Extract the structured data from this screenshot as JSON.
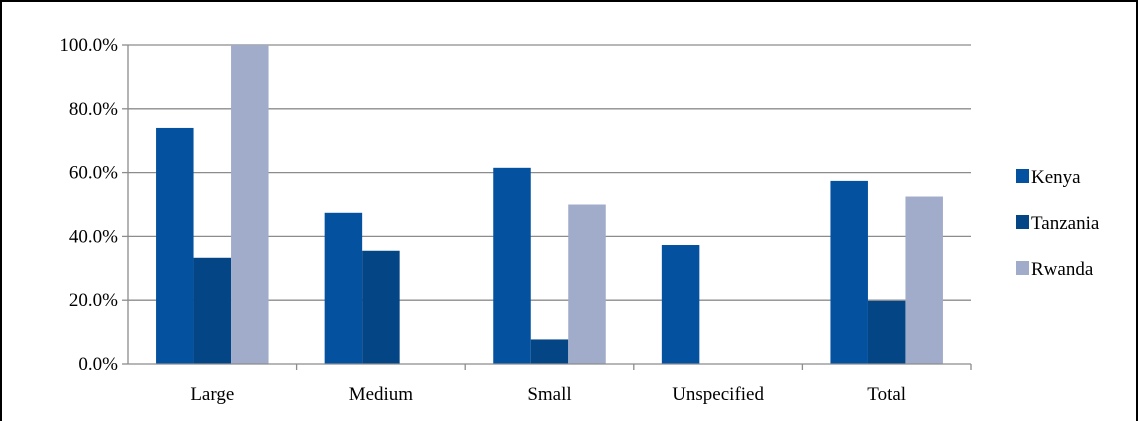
{
  "chart_data": {
    "type": "bar",
    "title": "",
    "xlabel": "",
    "ylabel": "",
    "categories": [
      "Large",
      "Medium",
      "Small",
      "Unspecified",
      "Total"
    ],
    "series": [
      {
        "name": "Kenya",
        "color": "#0451A0",
        "values": [
          74.0,
          47.4,
          61.5,
          37.3,
          57.4
        ]
      },
      {
        "name": "Tanzania",
        "color": "#044685",
        "values": [
          33.3,
          35.5,
          7.7,
          0,
          19.8
        ]
      },
      {
        "name": "Rwanda",
        "color": "#A1ACCB",
        "values": [
          100.0,
          0,
          50.0,
          0,
          52.5
        ]
      }
    ],
    "ylim": [
      0,
      100
    ],
    "yticks": [
      "0.0%",
      "20.0%",
      "40.0%",
      "60.0%",
      "80.0%",
      "100.0%"
    ],
    "grid": true,
    "legend_position": "right"
  }
}
